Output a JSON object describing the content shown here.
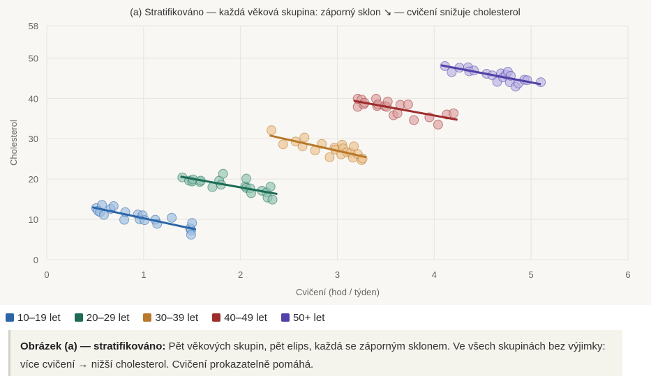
{
  "chart_data": {
    "type": "scatter",
    "title": "(a) Stratifikováno — každá věková skupina: záporný sklon ↘ — cvičení snižuje cholesterol",
    "xlabel": "Cvičení (hod / týden)",
    "ylabel": "Cholesterol",
    "xlim": [
      0,
      6
    ],
    "ylim": [
      0,
      58
    ],
    "xticks": [
      0,
      1,
      2,
      3,
      4,
      5,
      6
    ],
    "yticks": [
      0,
      10,
      20,
      30,
      40,
      50,
      58
    ],
    "grid": true,
    "legend_position": "bottom-left",
    "series": [
      {
        "name": "10–19 let",
        "color": "#2b65a8",
        "fill": "#9bbde0",
        "trend": {
          "x": [
            0.47,
            1.54
          ],
          "y": [
            13.0,
            7.5
          ]
        },
        "points": [
          [
            0.51,
            12.8
          ],
          [
            0.53,
            12.1
          ],
          [
            0.55,
            11.8
          ],
          [
            0.57,
            13.6
          ],
          [
            0.59,
            11.1
          ],
          [
            0.66,
            12.6
          ],
          [
            0.69,
            13.3
          ],
          [
            0.8,
            9.9
          ],
          [
            0.81,
            11.8
          ],
          [
            0.94,
            11.2
          ],
          [
            0.96,
            10.0
          ],
          [
            0.99,
            11.0
          ],
          [
            1.01,
            9.8
          ],
          [
            1.12,
            9.9
          ],
          [
            1.14,
            8.9
          ],
          [
            1.29,
            10.4
          ],
          [
            1.48,
            7.8
          ],
          [
            1.49,
            7.3
          ],
          [
            1.49,
            6.2
          ],
          [
            1.5,
            9.1
          ]
        ]
      },
      {
        "name": "20–29 let",
        "color": "#1c6b55",
        "fill": "#8fc3b0",
        "trend": {
          "x": [
            1.38,
            2.38
          ],
          "y": [
            20.6,
            16.3
          ]
        },
        "points": [
          [
            1.4,
            20.4
          ],
          [
            1.47,
            19.6
          ],
          [
            1.5,
            19.4
          ],
          [
            1.51,
            19.9
          ],
          [
            1.58,
            19.3
          ],
          [
            1.59,
            19.6
          ],
          [
            1.71,
            18.0
          ],
          [
            1.78,
            19.6
          ],
          [
            1.8,
            18.6
          ],
          [
            1.82,
            21.3
          ],
          [
            2.05,
            18.2
          ],
          [
            2.06,
            17.8
          ],
          [
            2.06,
            20.1
          ],
          [
            2.1,
            17.7
          ],
          [
            2.11,
            16.5
          ],
          [
            2.22,
            17.1
          ],
          [
            2.27,
            16.7
          ],
          [
            2.28,
            15.4
          ],
          [
            2.31,
            18.1
          ],
          [
            2.33,
            14.9
          ]
        ]
      },
      {
        "name": "30–39 let",
        "color": "#b8792a",
        "fill": "#ecc38f",
        "trend": {
          "x": [
            2.3,
            3.3
          ],
          "y": [
            30.8,
            25.4
          ]
        },
        "points": [
          [
            2.32,
            32.1
          ],
          [
            2.44,
            28.6
          ],
          [
            2.57,
            29.3
          ],
          [
            2.64,
            28.1
          ],
          [
            2.66,
            30.3
          ],
          [
            2.77,
            27.1
          ],
          [
            2.84,
            28.7
          ],
          [
            2.92,
            25.4
          ],
          [
            2.97,
            27.8
          ],
          [
            2.98,
            27.3
          ],
          [
            3.04,
            26.1
          ],
          [
            3.05,
            28.5
          ],
          [
            3.06,
            27.6
          ],
          [
            3.1,
            26.6
          ],
          [
            3.14,
            26.5
          ],
          [
            3.16,
            25.3
          ],
          [
            3.17,
            28.1
          ],
          [
            3.21,
            26.2
          ],
          [
            3.25,
            24.7
          ],
          [
            3.26,
            25.1
          ]
        ]
      },
      {
        "name": "40–49 let",
        "color": "#9e2d2d",
        "fill": "#dca0a0",
        "trend": {
          "x": [
            3.17,
            4.24
          ],
          "y": [
            39.4,
            34.7
          ]
        },
        "points": [
          [
            3.21,
            37.9
          ],
          [
            3.21,
            39.9
          ],
          [
            3.25,
            39.7
          ],
          [
            3.27,
            38.5
          ],
          [
            3.28,
            38.9
          ],
          [
            3.4,
            39.9
          ],
          [
            3.41,
            38.1
          ],
          [
            3.42,
            38.5
          ],
          [
            3.49,
            38.1
          ],
          [
            3.51,
            37.9
          ],
          [
            3.52,
            39.2
          ],
          [
            3.58,
            35.8
          ],
          [
            3.62,
            36.3
          ],
          [
            3.65,
            38.4
          ],
          [
            3.73,
            38.5
          ],
          [
            3.79,
            34.6
          ],
          [
            3.95,
            35.3
          ],
          [
            4.04,
            33.5
          ],
          [
            4.13,
            36.0
          ],
          [
            4.2,
            36.3
          ]
        ]
      },
      {
        "name": "50+ let",
        "color": "#5141a8",
        "fill": "#b8b0e3",
        "trend": {
          "x": [
            4.07,
            5.1
          ],
          "y": [
            48.2,
            43.5
          ]
        },
        "points": [
          [
            4.11,
            48.0
          ],
          [
            4.18,
            46.5
          ],
          [
            4.26,
            47.6
          ],
          [
            4.35,
            47.7
          ],
          [
            4.36,
            46.7
          ],
          [
            4.41,
            46.9
          ],
          [
            4.54,
            46.1
          ],
          [
            4.6,
            45.7
          ],
          [
            4.65,
            44.1
          ],
          [
            4.69,
            46.2
          ],
          [
            4.71,
            45.2
          ],
          [
            4.74,
            45.9
          ],
          [
            4.76,
            46.6
          ],
          [
            4.78,
            44.0
          ],
          [
            4.79,
            45.6
          ],
          [
            4.84,
            42.9
          ],
          [
            4.87,
            43.7
          ],
          [
            4.93,
            44.6
          ],
          [
            4.96,
            44.5
          ],
          [
            5.1,
            44.0
          ]
        ]
      }
    ]
  },
  "caption": {
    "bold": "Obrázek (a) — stratifikováno:",
    "text": " Pět věkových skupin, pět elips, každá se záporným sklonem. Ve všech skupinách bez výjimky: více cvičení → nižší cholesterol. Cvičení prokazatelně pomáhá."
  }
}
